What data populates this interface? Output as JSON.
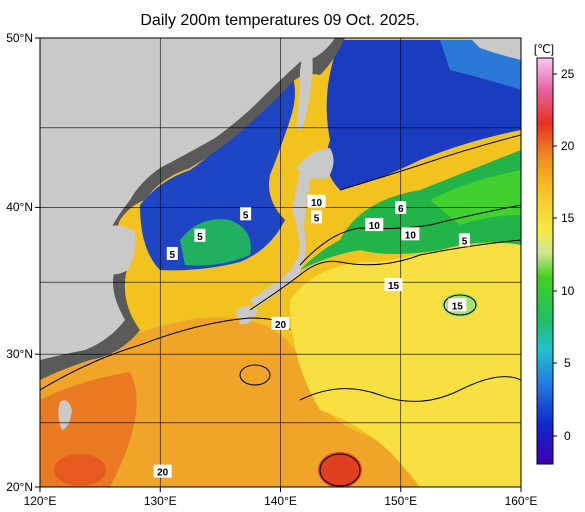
{
  "title": "Daily 200m temperatures 09 Oct. 2025.",
  "colorbar": {
    "unit": "[℃]",
    "ticks": [
      "25",
      "20",
      "15",
      "10",
      "5",
      "0"
    ]
  },
  "axes": {
    "x_ticks": [
      "120°E",
      "130°E",
      "140°E",
      "150°E",
      "160°E"
    ],
    "y_ticks": [
      "50°N",
      "40°N",
      "30°N",
      "20°N"
    ]
  },
  "contour_labels": [
    {
      "text": "5",
      "lon": 131.0,
      "lat": 37.0
    },
    {
      "text": "5",
      "lon": 133.3,
      "lat": 38.2
    },
    {
      "text": "5",
      "lon": 137.1,
      "lat": 39.6
    },
    {
      "text": "10",
      "lon": 143.0,
      "lat": 40.4
    },
    {
      "text": "5",
      "lon": 143.0,
      "lat": 39.4
    },
    {
      "text": "6",
      "lon": 150.0,
      "lat": 40.0
    },
    {
      "text": "10",
      "lon": 147.8,
      "lat": 38.9
    },
    {
      "text": "10",
      "lon": 150.8,
      "lat": 38.3
    },
    {
      "text": "5",
      "lon": 155.3,
      "lat": 37.9
    },
    {
      "text": "15",
      "lon": 149.4,
      "lat": 34.9
    },
    {
      "text": "15",
      "lon": 154.7,
      "lat": 33.5
    },
    {
      "text": "20",
      "lon": 140.0,
      "lat": 32.2
    },
    {
      "text": "20",
      "lon": 130.2,
      "lat": 21.2
    }
  ],
  "colors": {
    "land": "#c9c9c9",
    "shelf": "#5a5a5a",
    "cold": "#1d3fb8",
    "frontal": "#20b040",
    "warm": "#f0c020",
    "hot": "#e88020"
  }
}
